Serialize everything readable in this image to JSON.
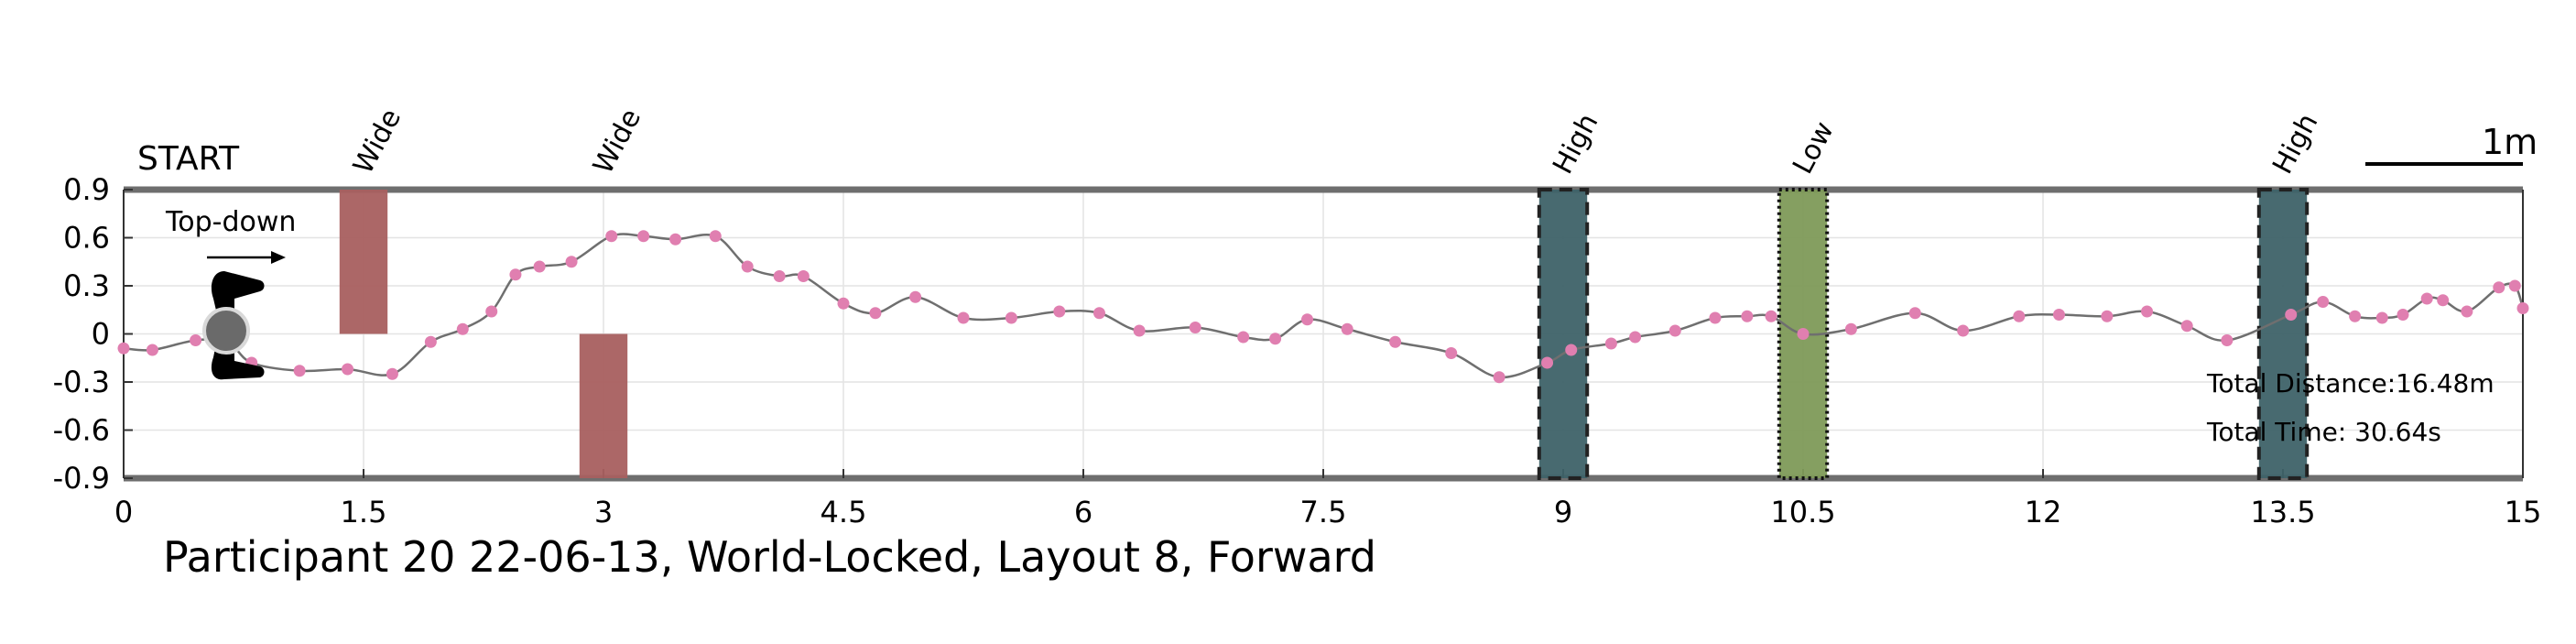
{
  "chart_data": {
    "type": "line",
    "title": "Participant 20 22-06-13, World-Locked, Layout 8, Forward",
    "start_label": "START",
    "direction_label": "Top-down",
    "scale_label": "1m",
    "stats": [
      "Total Distance:16.48m",
      "Total Time: 30.64s"
    ],
    "xlim": [
      0,
      15
    ],
    "ylim": [
      -0.9,
      0.9
    ],
    "x_ticks": [
      "0",
      "1.5",
      "3",
      "4.5",
      "6",
      "7.5",
      "9",
      "10.5",
      "12",
      "13.5",
      "15"
    ],
    "y_ticks": [
      "0.9",
      "0.6",
      "0.3",
      "0",
      "-0.3",
      "-0.6",
      "-0.9"
    ],
    "x_tick_values": [
      0,
      1.5,
      3,
      4.5,
      6,
      7.5,
      9,
      10.5,
      12,
      13.5,
      15
    ],
    "y_tick_values": [
      0.9,
      0.6,
      0.3,
      0,
      -0.3,
      -0.6,
      -0.9
    ],
    "obstacles": [
      {
        "label": "Wide",
        "type": "wide",
        "x0": 1.35,
        "x1": 1.65,
        "y0": 0,
        "y1": 0.9,
        "color": "#a85f5f",
        "border": "none"
      },
      {
        "label": "Wide",
        "type": "wide",
        "x0": 2.85,
        "x1": 3.15,
        "y0": -0.9,
        "y1": 0,
        "color": "#a85f5f",
        "border": "none"
      },
      {
        "label": "High",
        "type": "high",
        "x0": 8.85,
        "x1": 9.15,
        "y0": -0.9,
        "y1": 0.9,
        "color": "#3e6268",
        "border": "dashed"
      },
      {
        "label": "Low",
        "type": "low",
        "x0": 10.35,
        "x1": 10.65,
        "y0": -0.9,
        "y1": 0.9,
        "color": "#7e9a58",
        "border": "dotted"
      },
      {
        "label": "High",
        "type": "high",
        "x0": 13.35,
        "x1": 13.65,
        "y0": -0.9,
        "y1": 0.9,
        "color": "#3e6268",
        "border": "dashed"
      }
    ],
    "series": [
      {
        "x": [
          0,
          0.18,
          0.45,
          0.65,
          0.8,
          1.1,
          1.4,
          1.68,
          1.92,
          2.12,
          2.3,
          2.45,
          2.6,
          2.8,
          3.05,
          3.25,
          3.45,
          3.7,
          3.9,
          4.1,
          4.25,
          4.5,
          4.7,
          4.95,
          5.25,
          5.55,
          5.85,
          6.1,
          6.35,
          6.7,
          7.0,
          7.2,
          7.4,
          7.65,
          7.95,
          8.3,
          8.6,
          8.9,
          9.05,
          9.3,
          9.45,
          9.7,
          9.95,
          10.15,
          10.3,
          10.5,
          10.8,
          11.2,
          11.5,
          11.85,
          12.1,
          12.4,
          12.65,
          12.9,
          13.15,
          13.55,
          13.75,
          13.95,
          14.12,
          14.25,
          14.4,
          14.5,
          14.65,
          14.85,
          14.95,
          15.0
        ],
        "y": [
          -0.09,
          -0.1,
          -0.04,
          -0.05,
          -0.18,
          -0.23,
          -0.22,
          -0.25,
          -0.05,
          0.03,
          0.14,
          0.37,
          0.42,
          0.45,
          0.61,
          0.61,
          0.59,
          0.61,
          0.42,
          0.36,
          0.36,
          0.19,
          0.13,
          0.23,
          0.1,
          0.1,
          0.14,
          0.13,
          0.02,
          0.04,
          -0.02,
          -0.03,
          0.09,
          0.03,
          -0.05,
          -0.12,
          -0.27,
          -0.18,
          -0.1,
          -0.06,
          -0.02,
          0.02,
          0.1,
          0.11,
          0.11,
          0.0,
          0.03,
          0.13,
          0.02,
          0.11,
          0.12,
          0.11,
          0.14,
          0.05,
          -0.04,
          0.12,
          0.2,
          0.11,
          0.1,
          0.12,
          0.22,
          0.21,
          0.14,
          0.29,
          0.3,
          0.16
        ]
      }
    ],
    "grid": true,
    "line_color": "#6f6f6f",
    "marker_color": "#e07fb0"
  }
}
